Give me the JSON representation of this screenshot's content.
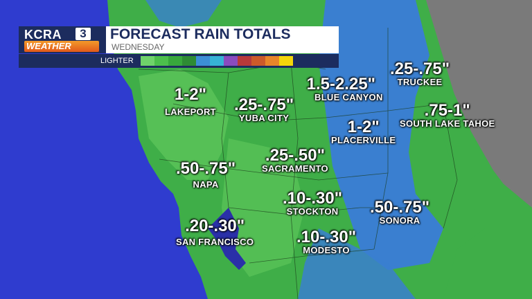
{
  "brand": {
    "station": "KCRA",
    "channel_number": "3",
    "weather_label": "WEATHER"
  },
  "header": {
    "title": "FORECAST RAIN TOTALS",
    "subtitle": "WEDNESDAY"
  },
  "legend": {
    "label": "LIGHTER",
    "colors": [
      "#6fd36a",
      "#4cbf4c",
      "#38a83c",
      "#2e8c34",
      "#3c8fd6",
      "#36b3d6",
      "#8a4bbf",
      "#b83a3a",
      "#cc5a2a",
      "#e8862a",
      "#f4d60a"
    ]
  },
  "places": [
    {
      "id": "lakeport",
      "amount": "1-2\"",
      "city": "LAKEPORT"
    },
    {
      "id": "yuba-city",
      "amount": ".25-.75\"",
      "city": "YUBA CITY"
    },
    {
      "id": "blue-canyon",
      "amount": "1.5-2.25\"",
      "city": "BLUE CANYON"
    },
    {
      "id": "truckee",
      "amount": ".25-.75\"",
      "city": "TRUCKEE"
    },
    {
      "id": "south-lake-tahoe",
      "amount": ".75-1\"",
      "city": "SOUTH LAKE TAHOE"
    },
    {
      "id": "placerville",
      "amount": "1-2\"",
      "city": "PLACERVILLE"
    },
    {
      "id": "sacramento",
      "amount": ".25-.50\"",
      "city": "SACRAMENTO"
    },
    {
      "id": "napa",
      "amount": ".50-.75\"",
      "city": "NAPA"
    },
    {
      "id": "stockton",
      "amount": ".10-.30\"",
      "city": "STOCKTON"
    },
    {
      "id": "sonora",
      "amount": ".50-.75\"",
      "city": "SONORA"
    },
    {
      "id": "san-francisco",
      "amount": ".20-.30\"",
      "city": "SAN FRANCISCO"
    },
    {
      "id": "modesto",
      "amount": ".10-.30\"",
      "city": "MODESTO"
    }
  ]
}
